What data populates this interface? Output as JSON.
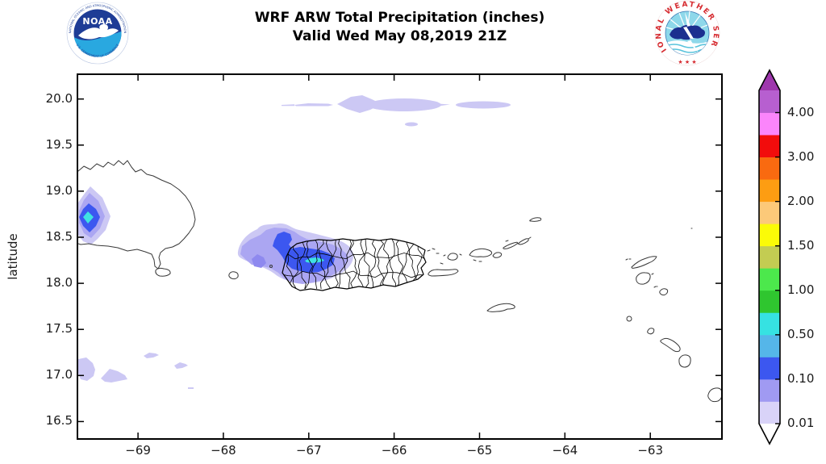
{
  "header": {
    "title_line1": "WRF ARW Total Precipitation (inches)",
    "title_line2": "Valid Wed May 08,2019 21Z"
  },
  "logos": {
    "noaa": {
      "label": "NOAA",
      "ring_top": "NATIONAL OCEANIC AND ATMOSPHERIC ADMINISTRATION",
      "ring_bottom": "U.S. DEPARTMENT OF COMMERCE",
      "navy": "#1e3c96",
      "cyan": "#29a8e0"
    },
    "nws": {
      "ring_text": "NATIONAL WEATHER SERVICE",
      "stars": "★ ★ ★",
      "red": "#d62b30",
      "inner_blue": "#8ed8ea",
      "navy": "#1b2f8f"
    }
  },
  "axes": {
    "ylabel": "latitude",
    "lon_min": -69.7,
    "lon_max": -62.17,
    "lat_min": 16.32,
    "lat_max": 20.26,
    "x_ticks": [
      {
        "label": "−69",
        "value": -69
      },
      {
        "label": "−68",
        "value": -68
      },
      {
        "label": "−67",
        "value": -67
      },
      {
        "label": "−66",
        "value": -66
      },
      {
        "label": "−65",
        "value": -65
      },
      {
        "label": "−64",
        "value": -64
      },
      {
        "label": "−63",
        "value": -63
      }
    ],
    "y_ticks": [
      {
        "label": "20.0",
        "value": 20.0
      },
      {
        "label": "19.5",
        "value": 19.5
      },
      {
        "label": "19.0",
        "value": 19.0
      },
      {
        "label": "18.5",
        "value": 18.5
      },
      {
        "label": "18.0",
        "value": 18.0
      },
      {
        "label": "17.5",
        "value": 17.5
      },
      {
        "label": "17.0",
        "value": 17.0
      },
      {
        "label": "16.5",
        "value": 16.5
      }
    ]
  },
  "colorbar": {
    "over_color": "#9e37ad",
    "under_color": "#ffffff",
    "segments": [
      "#d9d3f8",
      "#a09af2",
      "#3c57f0",
      "#55b6e9",
      "#36e2e2",
      "#2fc62f",
      "#4ce84c",
      "#c3cc52",
      "#fbfb07",
      "#fcc979",
      "#fd9d12",
      "#f96a10",
      "#f20c0c",
      "#fb85fb",
      "#b75fd0"
    ],
    "ticks": [
      {
        "label": "0.01",
        "boundary": 0
      },
      {
        "label": "0.10",
        "boundary": 2
      },
      {
        "label": "0.50",
        "boundary": 4
      },
      {
        "label": "1.00",
        "boundary": 6
      },
      {
        "label": "1.50",
        "boundary": 8
      },
      {
        "label": "2.00",
        "boundary": 10
      },
      {
        "label": "3.00",
        "boundary": 12
      },
      {
        "label": "4.00",
        "boundary": 14
      }
    ]
  },
  "colors": {
    "precip_light": "#ccc8f4",
    "precip_periwinkle": "#aba6f2",
    "precip_mid": "#8e89ef",
    "precip_blue": "#3c57f0",
    "precip_cyan": "#3fe2e2",
    "coast": "#383838",
    "boundary": "#000000"
  },
  "chart_data": {
    "type": "filled-contour-map",
    "title": "WRF ARW Total Precipitation (inches)",
    "valid_time": "Wed May 08,2019 21Z",
    "units": "inches",
    "ylabel": "latitude",
    "lon_range": [
      -69.7,
      -62.17
    ],
    "lat_range": [
      16.32,
      20.26
    ],
    "x_tick_values": [
      -69,
      -68,
      -67,
      -66,
      -65,
      -64,
      -63
    ],
    "y_tick_values": [
      20.0,
      19.5,
      19.0,
      18.5,
      18.0,
      17.5,
      17.0,
      16.5
    ],
    "colorbar_labeled_levels": [
      0.01,
      0.1,
      0.5,
      1.0,
      1.5,
      2.0,
      3.0,
      4.0
    ],
    "legend_position": "right",
    "features": [
      {
        "area": "west-central Puerto Rico interior (~18.3N, 67.0W)",
        "max_value_in": "0.50-0.75"
      },
      {
        "area": "eastern Dominican Republic (~18.7N, 69.6W)",
        "max_value_in": "0.50-0.75"
      },
      {
        "area": "Mona Passage west of Puerto Rico (~18.2N, 67.3W)",
        "max_value_in": "0.05-0.10"
      },
      {
        "area": "band along ~20.0N between 67.2W and 64.6W",
        "max_value_in": "0.01-0.05"
      },
      {
        "area": "scattered spots near 17.0N between 69.7W and 67.6W",
        "max_value_in": "0.01-0.05"
      }
    ]
  }
}
